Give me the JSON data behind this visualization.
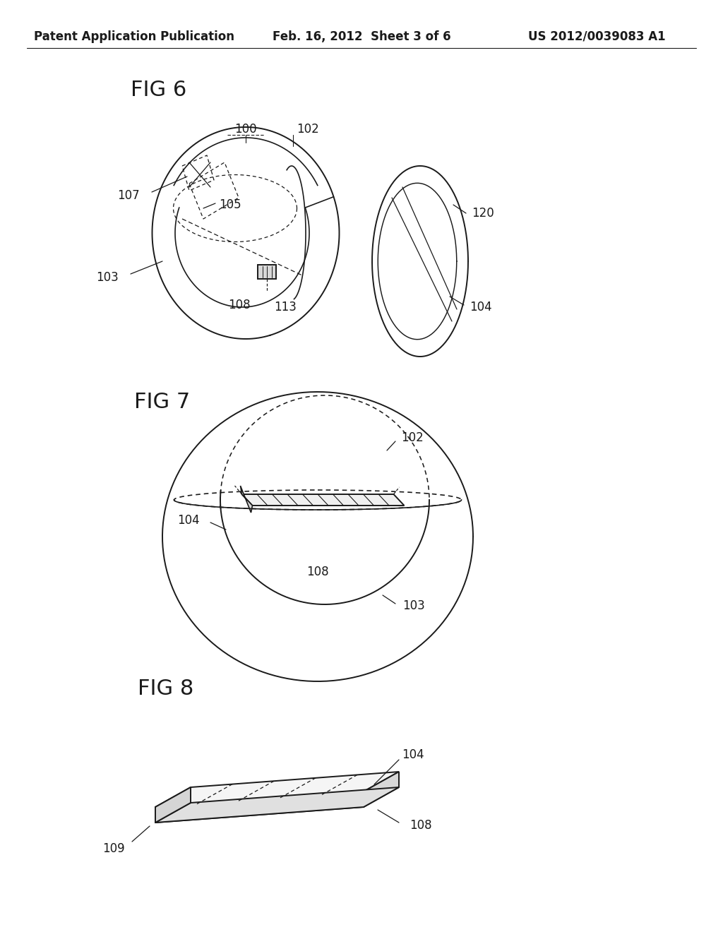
{
  "background_color": "#ffffff",
  "header_left": "Patent Application Publication",
  "header_center": "Feb. 16, 2012  Sheet 3 of 6",
  "header_right": "US 2012/0039083 A1",
  "fig6_label": "FIG 6",
  "fig7_label": "FIG 7",
  "fig8_label": "FIG 8",
  "label_fontsize": 22,
  "header_fontsize": 12,
  "annotation_fontsize": 12,
  "line_color": "#1a1a1a",
  "line_width": 1.4
}
